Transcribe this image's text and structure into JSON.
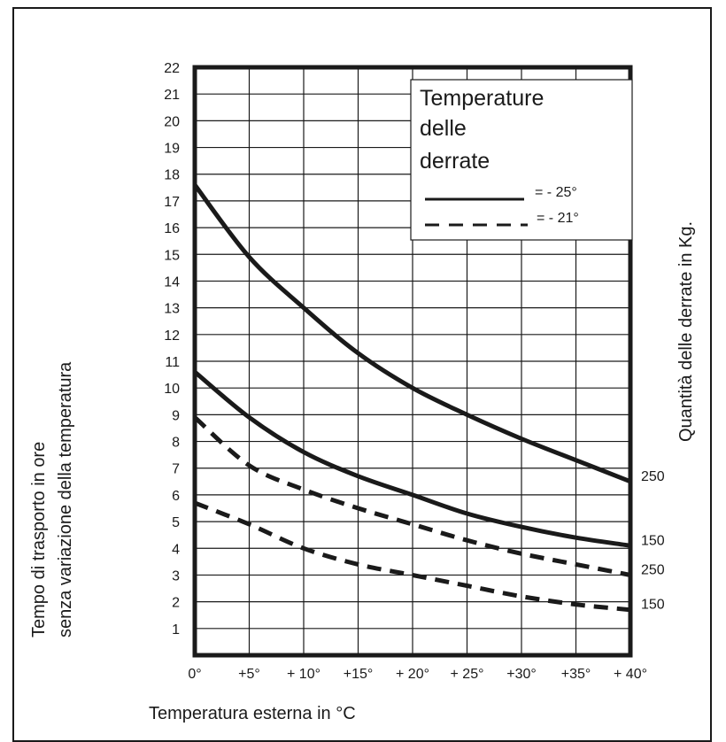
{
  "chart_data": {
    "type": "line",
    "xlabel": "Temperatura esterna in °C",
    "ylabel_lines": [
      "Tempo di trasporto in ore",
      "senza variazione della temperatura"
    ],
    "right_label": "Quantità delle derrate in Kg.",
    "x": [
      0,
      5,
      10,
      15,
      20,
      25,
      30,
      35,
      40
    ],
    "xticklabels": [
      "0°",
      "+5°",
      "+ 10°",
      "+15°",
      "+ 20°",
      "+ 25°",
      "+30°",
      "+35°",
      "+ 40°"
    ],
    "ylim": [
      0,
      22
    ],
    "yticklabels": [
      "1",
      "2",
      "3",
      "4",
      "5",
      "6",
      "7",
      "8",
      "9",
      "10",
      "11",
      "12",
      "13",
      "14",
      "15",
      "16",
      "17",
      "18",
      "19",
      "20",
      "21",
      "22"
    ],
    "grid": true,
    "legend": {
      "title_lines": [
        "Temperature",
        "delle",
        "derrate"
      ],
      "entries": [
        {
          "style": "solid",
          "label": "= - 25°"
        },
        {
          "style": "dashed",
          "label": "= - 21°"
        }
      ]
    },
    "series": [
      {
        "style": "solid",
        "end_label": "250",
        "values": [
          17.6,
          14.9,
          13.0,
          11.3,
          10.0,
          9.0,
          8.1,
          7.3,
          6.5
        ]
      },
      {
        "style": "solid",
        "end_label": "150",
        "values": [
          10.6,
          8.9,
          7.6,
          6.7,
          6.0,
          5.3,
          4.8,
          4.4,
          4.1
        ]
      },
      {
        "style": "dashed",
        "end_label": "250",
        "values": [
          8.9,
          7.1,
          6.2,
          5.5,
          4.9,
          4.3,
          3.8,
          3.4,
          3.0
        ]
      },
      {
        "style": "dashed",
        "end_label": "150",
        "values": [
          5.7,
          4.9,
          4.0,
          3.4,
          3.0,
          2.6,
          2.2,
          1.9,
          1.7
        ]
      }
    ]
  }
}
